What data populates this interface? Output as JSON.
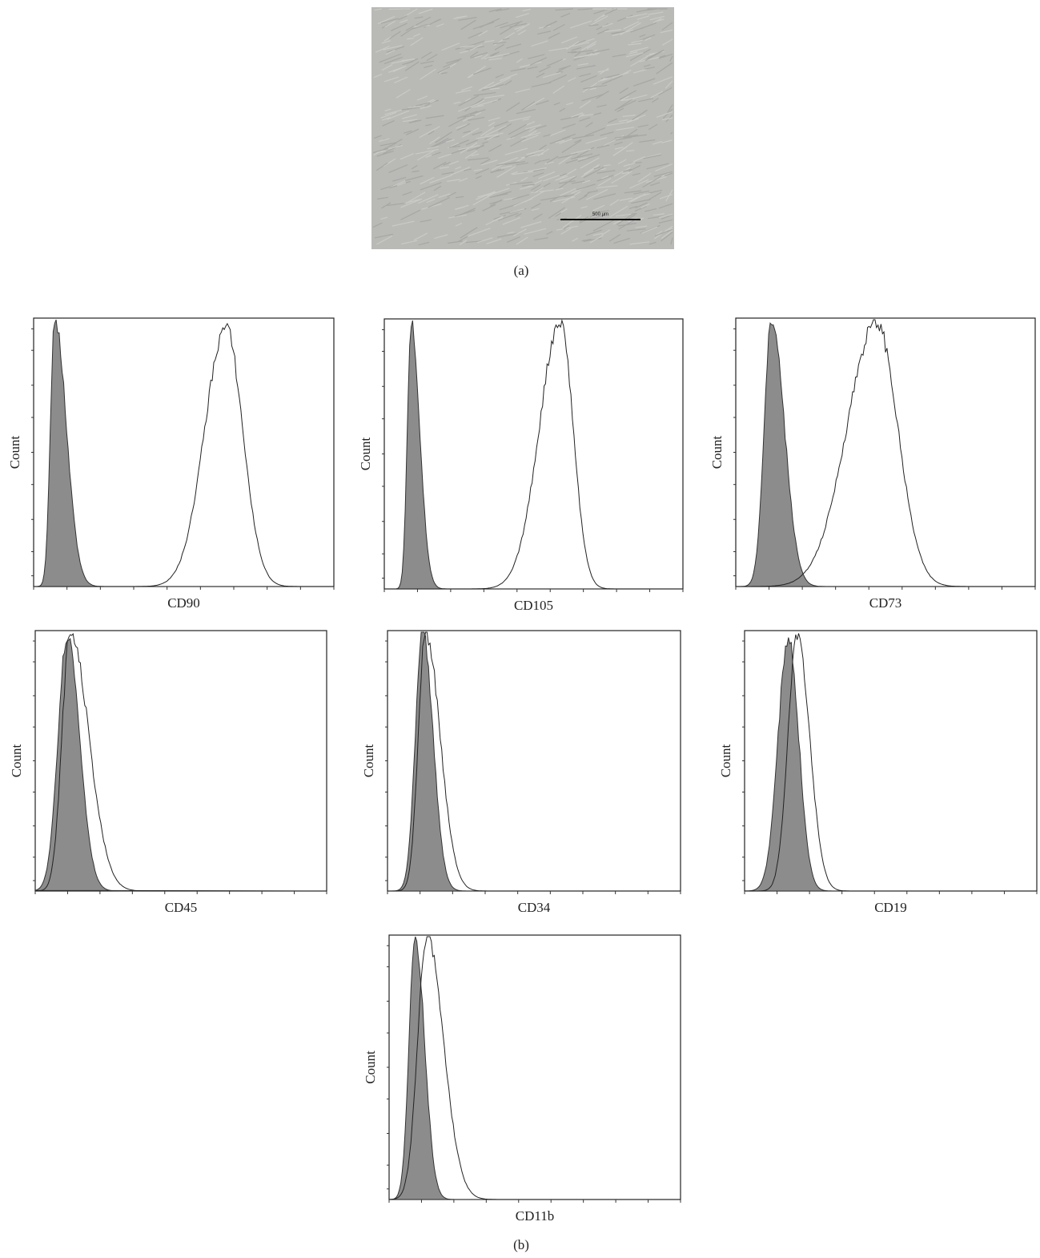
{
  "image": {
    "scale_bar": "500 µm",
    "label": "(a)"
  },
  "histograms": {
    "label": "(b)",
    "panels": [
      {
        "y_label": "Count",
        "x_label": "CD90"
      },
      {
        "y_label": "Count",
        "x_label": "CD105"
      },
      {
        "y_label": "Count",
        "x_label": "CD73"
      },
      {
        "y_label": "Count",
        "x_label": "CD45"
      },
      {
        "y_label": "Count",
        "x_label": "CD34"
      },
      {
        "y_label": "Count",
        "x_label": "CD19"
      },
      {
        "y_label": "Count",
        "x_label": "CD11b"
      }
    ]
  }
}
